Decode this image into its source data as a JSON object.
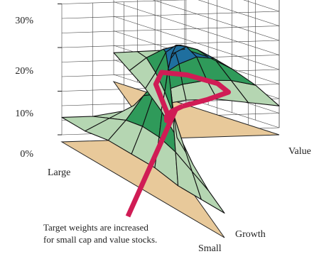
{
  "chart_data": {
    "type": "surface",
    "title": "",
    "y_axis": {
      "min": 0,
      "max": 30,
      "unit": "%",
      "ticks": [
        {
          "value": 0,
          "label": "0%"
        },
        {
          "value": 10,
          "label": "10%"
        },
        {
          "value": 20,
          "label": "20%"
        },
        {
          "value": 30,
          "label": "30%"
        }
      ]
    },
    "size_axis_labels": {
      "start": "Large",
      "end": "Small"
    },
    "style_axis_labels": {
      "start": "Value",
      "end": "Growth"
    },
    "heights_percent": [
      [
        4,
        4,
        5,
        6,
        7,
        7,
        6,
        5
      ],
      [
        4,
        6,
        8,
        10,
        11,
        11,
        10,
        8
      ],
      [
        5,
        8,
        12,
        15,
        16,
        16,
        14,
        10
      ],
      [
        5,
        9,
        14,
        18,
        19,
        18,
        15,
        11
      ],
      [
        5,
        9,
        14,
        18,
        19,
        18,
        15,
        11
      ],
      [
        4,
        8,
        12,
        15,
        16,
        16,
        13,
        9
      ],
      [
        4,
        6,
        8,
        10,
        11,
        11,
        10,
        7
      ],
      [
        4,
        4,
        5,
        6,
        7,
        7,
        6,
        5
      ]
    ],
    "height_bands": [
      {
        "from": 0,
        "to": 10,
        "color": "#b5d6b2"
      },
      {
        "from": 10,
        "to": 15,
        "color": "#2f9a5a"
      },
      {
        "from": 15,
        "to": 20,
        "color": "#1f6f9f"
      }
    ],
    "base_color": "#e8c99a",
    "highlight_color": "#d01c55",
    "annotation": {
      "lines": [
        "Target weights are increased",
        "for small cap and value stocks."
      ]
    }
  }
}
